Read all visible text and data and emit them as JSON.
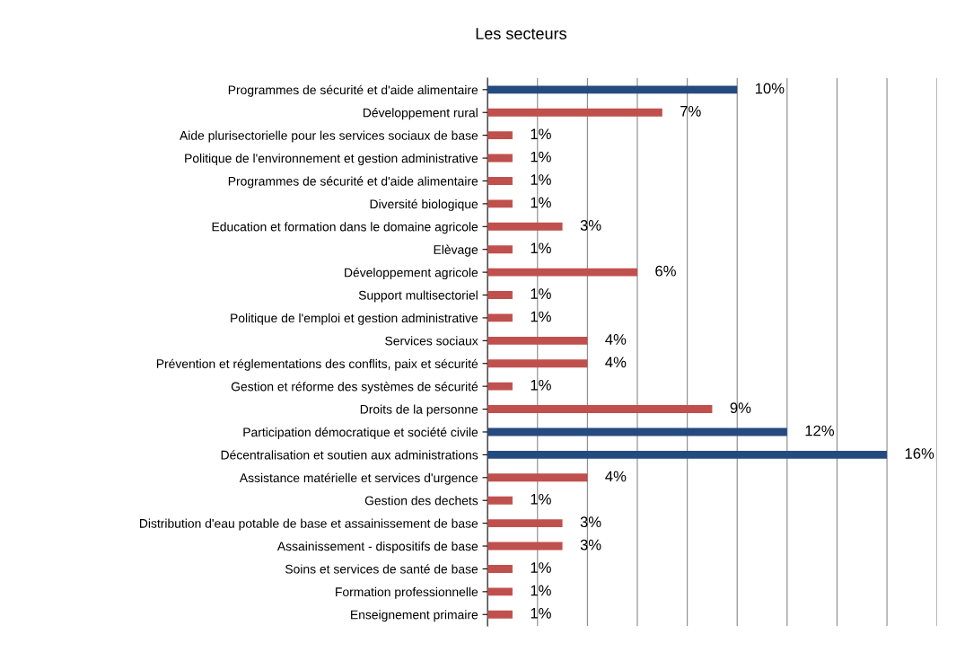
{
  "chart_data": {
    "type": "bar",
    "orientation": "horizontal",
    "title": "Les secteurs",
    "categories": [
      "Programmes de sécurité et d'aide alimentaire",
      "Développement rural",
      "Aide plurisectorielle pour les services sociaux de base",
      "Politique de l'environnement et gestion administrative",
      "Programmes de sécurité et d'aide alimentaire",
      "Diversité biologique",
      "Education et formation dans le domaine agricole",
      "Elèvage",
      "Développement agricole",
      "Support multisectoriel",
      "Politique de l'emploi et gestion administrative",
      "Services sociaux",
      "Prévention et réglementations des conflits, paix et sécurité",
      "Gestion et réforme des systèmes de sécurité",
      "Droits de la personne",
      "Participation démocratique et société civile",
      "Décentralisation et soutien aux administrations",
      "Assistance matérielle et services d'urgence",
      "Gestion des dechets",
      "Distribution d'eau potable de base et assainissement de base",
      "Assainissement - dispositifs de base",
      "Soins et services de santé de base",
      "Formation professionnelle",
      "Enseignement primaire"
    ],
    "values": [
      10,
      7,
      1,
      1,
      1,
      1,
      3,
      1,
      6,
      1,
      1,
      4,
      4,
      1,
      9,
      12,
      16,
      4,
      1,
      3,
      3,
      1,
      1,
      1
    ],
    "value_labels": [
      "10%",
      "7%",
      "1%",
      "1%",
      "1%",
      "1%",
      "3%",
      "1%",
      "6%",
      "1%",
      "1%",
      "4%",
      "4%",
      "1%",
      "9%",
      "12%",
      "16%",
      "4%",
      "1%",
      "3%",
      "3%",
      "1%",
      "1%",
      "1%"
    ],
    "colors": [
      "#254a7f",
      "#c0504d",
      "#c0504d",
      "#c0504d",
      "#c0504d",
      "#c0504d",
      "#c0504d",
      "#c0504d",
      "#c0504d",
      "#c0504d",
      "#c0504d",
      "#c0504d",
      "#c0504d",
      "#c0504d",
      "#c0504d",
      "#254a7f",
      "#254a7f",
      "#c0504d",
      "#c0504d",
      "#c0504d",
      "#c0504d",
      "#c0504d",
      "#c0504d",
      "#c0504d"
    ],
    "xlim": [
      0,
      18
    ],
    "xticks": [
      {
        "value": 2,
        "label": null
      },
      {
        "value": 4,
        "label": null
      },
      {
        "value": 6,
        "label": null
      },
      {
        "value": 8,
        "label": null
      },
      {
        "value": 10,
        "label": null
      },
      {
        "value": 12,
        "label": null
      },
      {
        "value": 14,
        "label": null
      },
      {
        "value": 16,
        "label": null
      },
      {
        "value": 18,
        "label": null
      }
    ],
    "grid": "x",
    "tick_labels": "y"
  }
}
